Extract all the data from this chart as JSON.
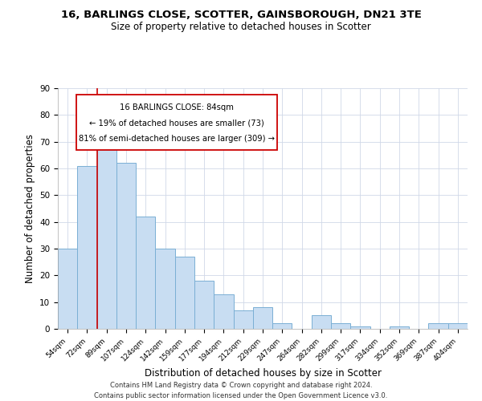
{
  "title": "16, BARLINGS CLOSE, SCOTTER, GAINSBOROUGH, DN21 3TE",
  "subtitle": "Size of property relative to detached houses in Scotter",
  "xlabel": "Distribution of detached houses by size in Scotter",
  "ylabel": "Number of detached properties",
  "footer_line1": "Contains HM Land Registry data © Crown copyright and database right 2024.",
  "footer_line2": "Contains public sector information licensed under the Open Government Licence v3.0.",
  "categories": [
    "54sqm",
    "72sqm",
    "89sqm",
    "107sqm",
    "124sqm",
    "142sqm",
    "159sqm",
    "177sqm",
    "194sqm",
    "212sqm",
    "229sqm",
    "247sqm",
    "264sqm",
    "282sqm",
    "299sqm",
    "317sqm",
    "334sqm",
    "352sqm",
    "369sqm",
    "387sqm",
    "404sqm"
  ],
  "values": [
    30,
    61,
    76,
    62,
    42,
    30,
    27,
    18,
    13,
    7,
    8,
    2,
    0,
    5,
    2,
    1,
    0,
    1,
    0,
    2,
    2
  ],
  "bar_color": "#c8ddf2",
  "bar_edge_color": "#7aafd4",
  "highlight_index": 2,
  "highlight_line_color": "#cc0000",
  "annotation_box_text_line1": "16 BARLINGS CLOSE: 84sqm",
  "annotation_box_text_line2": "← 19% of detached houses are smaller (73)",
  "annotation_box_text_line3": "81% of semi-detached houses are larger (309) →",
  "annotation_box_edge_color": "#cc0000",
  "ylim": [
    0,
    90
  ],
  "yticks": [
    0,
    10,
    20,
    30,
    40,
    50,
    60,
    70,
    80,
    90
  ],
  "background_color": "#ffffff",
  "grid_color": "#d0d8e8"
}
